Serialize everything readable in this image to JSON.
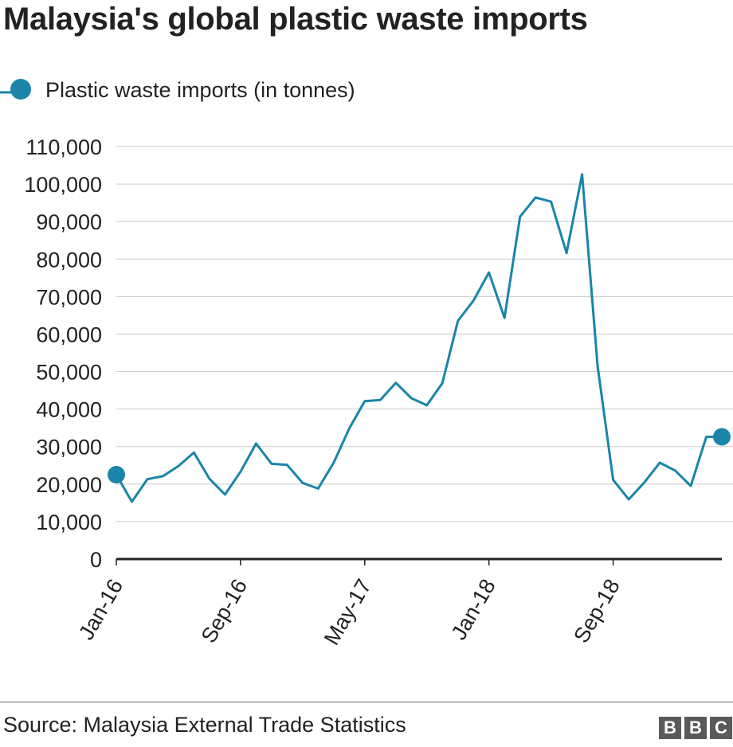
{
  "chart_data": {
    "type": "line",
    "title": "Malaysia's global plastic waste imports",
    "legend": {
      "position": "top-left",
      "entries": [
        "Plastic waste imports (in tonnes)"
      ]
    },
    "xlabel": "",
    "ylabel": "",
    "ylim": [
      0,
      110000
    ],
    "yticks": [
      0,
      10000,
      20000,
      30000,
      40000,
      50000,
      60000,
      70000,
      80000,
      90000,
      100000,
      110000
    ],
    "ytick_labels": [
      "0",
      "10,000",
      "20,000",
      "30,000",
      "40,000",
      "50,000",
      "60,000",
      "70,000",
      "80,000",
      "90,000",
      "100,000",
      "110,000"
    ],
    "xtick_labels": [
      {
        "index": 0,
        "label": "Jan-16"
      },
      {
        "index": 8,
        "label": "Sep-16"
      },
      {
        "index": 16,
        "label": "May-17"
      },
      {
        "index": 24,
        "label": "Jan-18"
      },
      {
        "index": 32,
        "label": "Sep-18"
      }
    ],
    "grid": true,
    "series": [
      {
        "name": "Plastic waste imports (in tonnes)",
        "color": "#1a85a8",
        "x": [
          "Jan-16",
          "Feb-16",
          "Mar-16",
          "Apr-16",
          "May-16",
          "Jun-16",
          "Jul-16",
          "Aug-16",
          "Sep-16",
          "Oct-16",
          "Nov-16",
          "Dec-16",
          "Jan-17",
          "Feb-17",
          "Mar-17",
          "Apr-17",
          "May-17",
          "Jun-17",
          "Jul-17",
          "Aug-17",
          "Sep-17",
          "Oct-17",
          "Nov-17",
          "Dec-17",
          "Jan-18",
          "Feb-18",
          "Mar-18",
          "Apr-18",
          "May-18",
          "Jun-18",
          "Jul-18",
          "Aug-18",
          "Sep-18",
          "Oct-18",
          "Nov-18",
          "Dec-18",
          "Jan-19",
          "Feb-19",
          "Mar-19",
          "Apr-19"
        ],
        "values": [
          22500,
          15300,
          21300,
          22100,
          24800,
          28400,
          21400,
          17200,
          23300,
          30800,
          25400,
          25100,
          20300,
          18800,
          25700,
          34800,
          42100,
          42400,
          47000,
          42900,
          41000,
          46900,
          63500,
          68900,
          76400,
          64300,
          91300,
          96400,
          95300,
          81600,
          102600,
          51400,
          21100,
          15900,
          20400,
          25700,
          23600,
          19500,
          32600,
          32600
        ],
        "markers": "endpoints"
      }
    ]
  },
  "source": "Source: Malaysia External Trade Statistics",
  "logo": [
    "B",
    "B",
    "C"
  ]
}
